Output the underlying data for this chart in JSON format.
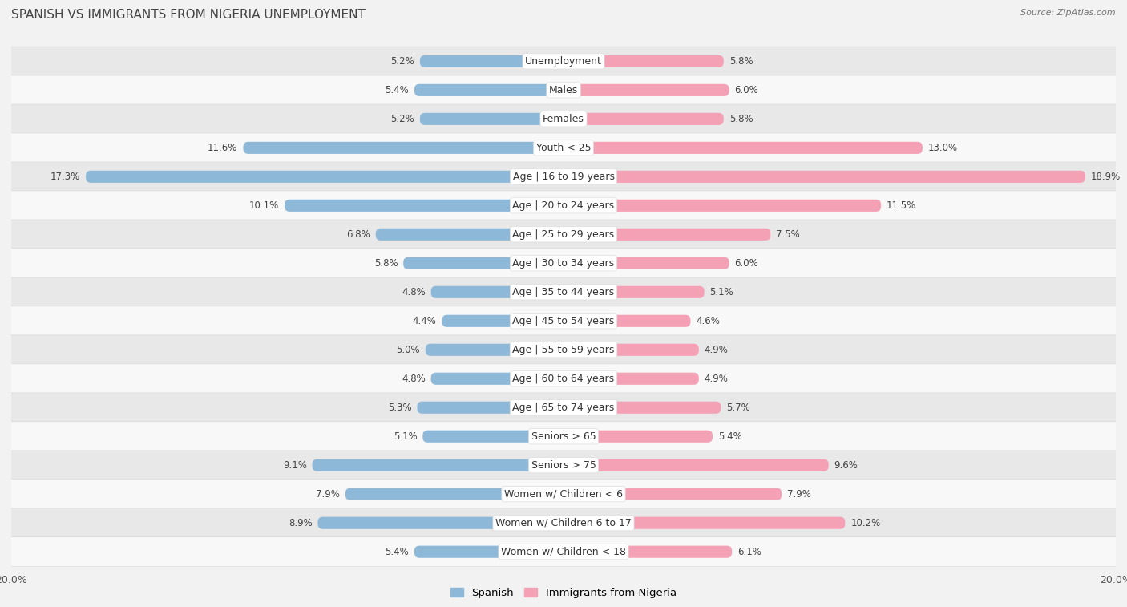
{
  "title": "Spanish vs Immigrants from Nigeria Unemployment",
  "source": "Source: ZipAtlas.com",
  "categories": [
    "Unemployment",
    "Males",
    "Females",
    "Youth < 25",
    "Age | 16 to 19 years",
    "Age | 20 to 24 years",
    "Age | 25 to 29 years",
    "Age | 30 to 34 years",
    "Age | 35 to 44 years",
    "Age | 45 to 54 years",
    "Age | 55 to 59 years",
    "Age | 60 to 64 years",
    "Age | 65 to 74 years",
    "Seniors > 65",
    "Seniors > 75",
    "Women w/ Children < 6",
    "Women w/ Children 6 to 17",
    "Women w/ Children < 18"
  ],
  "spanish": [
    5.2,
    5.4,
    5.2,
    11.6,
    17.3,
    10.1,
    6.8,
    5.8,
    4.8,
    4.4,
    5.0,
    4.8,
    5.3,
    5.1,
    9.1,
    7.9,
    8.9,
    5.4
  ],
  "nigeria": [
    5.8,
    6.0,
    5.8,
    13.0,
    18.9,
    11.5,
    7.5,
    6.0,
    5.1,
    4.6,
    4.9,
    4.9,
    5.7,
    5.4,
    9.6,
    7.9,
    10.2,
    6.1
  ],
  "spanish_color": "#8db8d8",
  "nigeria_color": "#f4a0b5",
  "axis_max": 20.0,
  "bg_color": "#f2f2f2",
  "row_color_odd": "#e8e8e8",
  "row_color_even": "#f8f8f8",
  "title_fontsize": 11,
  "label_fontsize": 9,
  "value_fontsize": 8.5,
  "bar_height": 0.42,
  "legend_label_spanish": "Spanish",
  "legend_label_nigeria": "Immigrants from Nigeria"
}
